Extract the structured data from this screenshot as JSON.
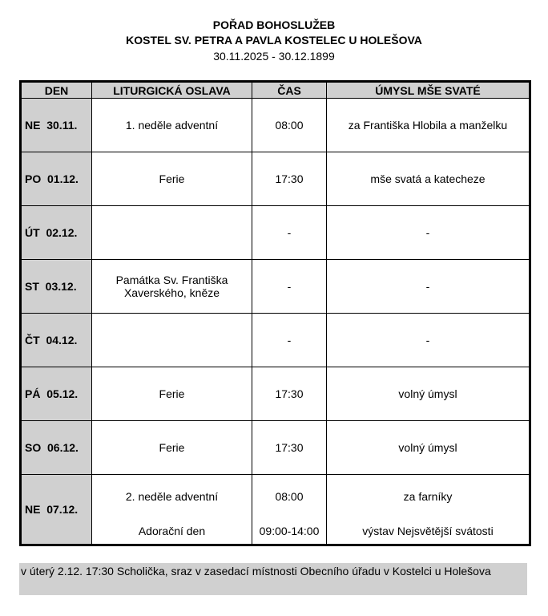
{
  "header": {
    "title": "POŘAD BOHOSLUŽEB",
    "church": "KOSTEL SV. PETRA A PAVLA KOSTELEC U HOLEŠOVA",
    "dates": "30.11.2025 - 30.12.1899"
  },
  "columns": [
    "DEN",
    "LITURGICKÁ OSLAVA",
    "ČAS",
    "ÚMYSL MŠE SVATÉ"
  ],
  "rows": [
    {
      "day": "NE  30.11.",
      "feast": "1. neděle adventní",
      "time": "08:00",
      "intention": "za Františka Hlobila a manželku"
    },
    {
      "day": "PO  01.12.",
      "feast": "Ferie",
      "time": "17:30",
      "intention": "mše svatá a katecheze"
    },
    {
      "day": "ÚT  02.12.",
      "feast": "",
      "time": "-",
      "intention": "-"
    },
    {
      "day": "ST  03.12.",
      "feast": "Památka Sv. Františka Xaverského, kněze",
      "time": "-",
      "intention": "-"
    },
    {
      "day": "ČT  04.12.",
      "feast": "",
      "time": "-",
      "intention": "-"
    },
    {
      "day": "PÁ  05.12.",
      "feast": "Ferie",
      "time": "17:30",
      "intention": "volný úmysl"
    },
    {
      "day": "SO  06.12.",
      "feast": "Ferie",
      "time": "17:30",
      "intention": "volný úmysl"
    },
    {
      "day": "NE  07.12.",
      "feast": "2. neděle adventní",
      "time": "08:00",
      "intention": "za farníky",
      "feast2": "Adorační den",
      "time2": "09:00-14:00",
      "intention2": "výstav Nejsvětější svátosti"
    }
  ],
  "note": "v úterý 2.12. 17:30 Scholička, sraz v zasedací místnosti Obecního úřadu v Kostelci u Holešova"
}
